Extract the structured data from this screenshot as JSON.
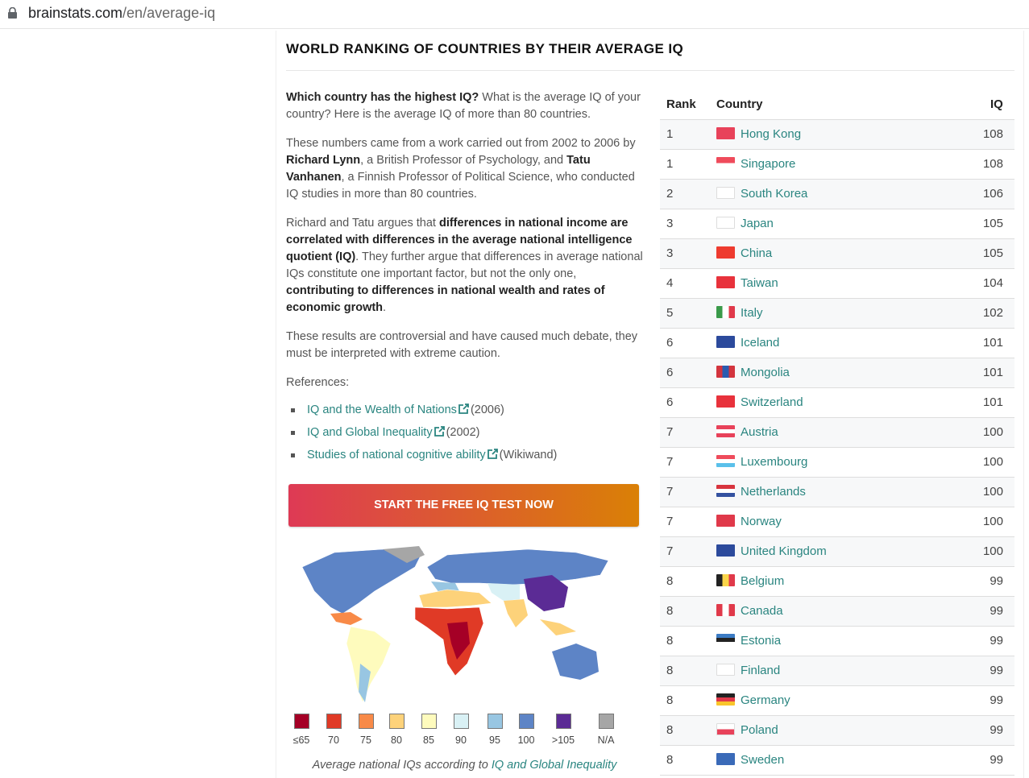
{
  "browser": {
    "url_domain": "brainstats.com",
    "url_path": "/en/average-iq",
    "lock_icon": "lock-icon"
  },
  "title": "WORLD RANKING OF COUNTRIES BY THEIR AVERAGE IQ",
  "intro": {
    "q": "Which country has the highest IQ?",
    "rest": " What is the average IQ of your country? Here is the average IQ of more than 80 countries."
  },
  "p2": {
    "a": "These numbers came from a work carried out from 2002 to 2006 by ",
    "b": "Richard Lynn",
    "c": ", a British Professor of Psychology, and ",
    "d": "Tatu Vanhanen",
    "e": ", a Finnish Professor of Political Science, who conducted IQ studies in more than 80 countries."
  },
  "p3": {
    "a": "Richard and Tatu argues that ",
    "b": "differences in national income are correlated with differences in the average national intelligence quotient (IQ)",
    "c": ". They further argue that differences in average national IQs constitute one important factor, but not the only one, ",
    "d": "contributing to differences in national wealth and rates of economic growth",
    "e": "."
  },
  "p4": "These results are controversial and have caused much debate, they must be interpreted with extreme caution.",
  "refs_label": "References:",
  "refs": [
    {
      "link": "IQ and the Wealth of Nations",
      "note": "(2006)"
    },
    {
      "link": "IQ and Global Inequality",
      "note": "(2002)"
    },
    {
      "link": "Studies of national cognitive ability",
      "note": "(Wikiwand)"
    }
  ],
  "cta": "START THE FREE IQ TEST NOW",
  "legend": [
    {
      "label": "≤65",
      "color": "#a50026"
    },
    {
      "label": "70",
      "color": "#e03a26"
    },
    {
      "label": "75",
      "color": "#f88a48"
    },
    {
      "label": "80",
      "color": "#fdd27a"
    },
    {
      "label": "85",
      "color": "#fefbbd"
    },
    {
      "label": "90",
      "color": "#d9f1f5"
    },
    {
      "label": "95",
      "color": "#98c6e2"
    },
    {
      "label": "100",
      "color": "#5d84c6"
    },
    {
      "label": ">105",
      "color": "#5b2b95"
    },
    {
      "label": "N/A",
      "color": "#a6a6a6"
    }
  ],
  "caption": {
    "text": "Average national IQs according to ",
    "link": "IQ and Global Inequality"
  },
  "table": {
    "headers": [
      "Rank",
      "Country",
      "IQ"
    ],
    "rows": [
      {
        "rank": "1",
        "country": "Hong Kong",
        "iq": "108",
        "flag": [
          "#e8425a"
        ],
        "dir": "h"
      },
      {
        "rank": "1",
        "country": "Singapore",
        "iq": "108",
        "flag": [
          "#ef4b5b",
          "#ffffff"
        ],
        "dir": "h"
      },
      {
        "rank": "2",
        "country": "South Korea",
        "iq": "106",
        "flag": [
          "#ffffff"
        ],
        "dir": "h"
      },
      {
        "rank": "3",
        "country": "Japan",
        "iq": "105",
        "flag": [
          "#ffffff"
        ],
        "dir": "h"
      },
      {
        "rank": "3",
        "country": "China",
        "iq": "105",
        "flag": [
          "#ee3b2f"
        ],
        "dir": "h"
      },
      {
        "rank": "4",
        "country": "Taiwan",
        "iq": "104",
        "flag": [
          "#e8323c"
        ],
        "dir": "h"
      },
      {
        "rank": "5",
        "country": "Italy",
        "iq": "102",
        "flag": [
          "#3a9a4a",
          "#ffffff",
          "#e0394a"
        ],
        "dir": "v"
      },
      {
        "rank": "6",
        "country": "Iceland",
        "iq": "101",
        "flag": [
          "#2c4a9c"
        ],
        "dir": "h"
      },
      {
        "rank": "6",
        "country": "Mongolia",
        "iq": "101",
        "flag": [
          "#d3343e",
          "#2a5bb0",
          "#d3343e"
        ],
        "dir": "v"
      },
      {
        "rank": "6",
        "country": "Switzerland",
        "iq": "101",
        "flag": [
          "#e8323c"
        ],
        "dir": "h"
      },
      {
        "rank": "7",
        "country": "Austria",
        "iq": "100",
        "flag": [
          "#e8425a",
          "#ffffff",
          "#e8425a"
        ],
        "dir": "h"
      },
      {
        "rank": "7",
        "country": "Luxembourg",
        "iq": "100",
        "flag": [
          "#ef4b5b",
          "#ffffff",
          "#5ac0ea"
        ],
        "dir": "h"
      },
      {
        "rank": "7",
        "country": "Netherlands",
        "iq": "100",
        "flag": [
          "#d8343e",
          "#ffffff",
          "#3452a0"
        ],
        "dir": "h"
      },
      {
        "rank": "7",
        "country": "Norway",
        "iq": "100",
        "flag": [
          "#e0394a"
        ],
        "dir": "h"
      },
      {
        "rank": "7",
        "country": "United Kingdom",
        "iq": "100",
        "flag": [
          "#2c4a9c"
        ],
        "dir": "h"
      },
      {
        "rank": "8",
        "country": "Belgium",
        "iq": "99",
        "flag": [
          "#222222",
          "#f9d54a",
          "#e0394a"
        ],
        "dir": "v"
      },
      {
        "rank": "8",
        "country": "Canada",
        "iq": "99",
        "flag": [
          "#e0394a",
          "#ffffff",
          "#e0394a"
        ],
        "dir": "v"
      },
      {
        "rank": "8",
        "country": "Estonia",
        "iq": "99",
        "flag": [
          "#3b7bc4",
          "#222222",
          "#ffffff"
        ],
        "dir": "h"
      },
      {
        "rank": "8",
        "country": "Finland",
        "iq": "99",
        "flag": [
          "#ffffff"
        ],
        "dir": "h"
      },
      {
        "rank": "8",
        "country": "Germany",
        "iq": "99",
        "flag": [
          "#222222",
          "#e0394a",
          "#f9c52c"
        ],
        "dir": "h"
      },
      {
        "rank": "8",
        "country": "Poland",
        "iq": "99",
        "flag": [
          "#ffffff",
          "#e8425a"
        ],
        "dir": "h"
      },
      {
        "rank": "8",
        "country": "Sweden",
        "iq": "99",
        "flag": [
          "#3a6ab8"
        ],
        "dir": "h"
      }
    ]
  }
}
